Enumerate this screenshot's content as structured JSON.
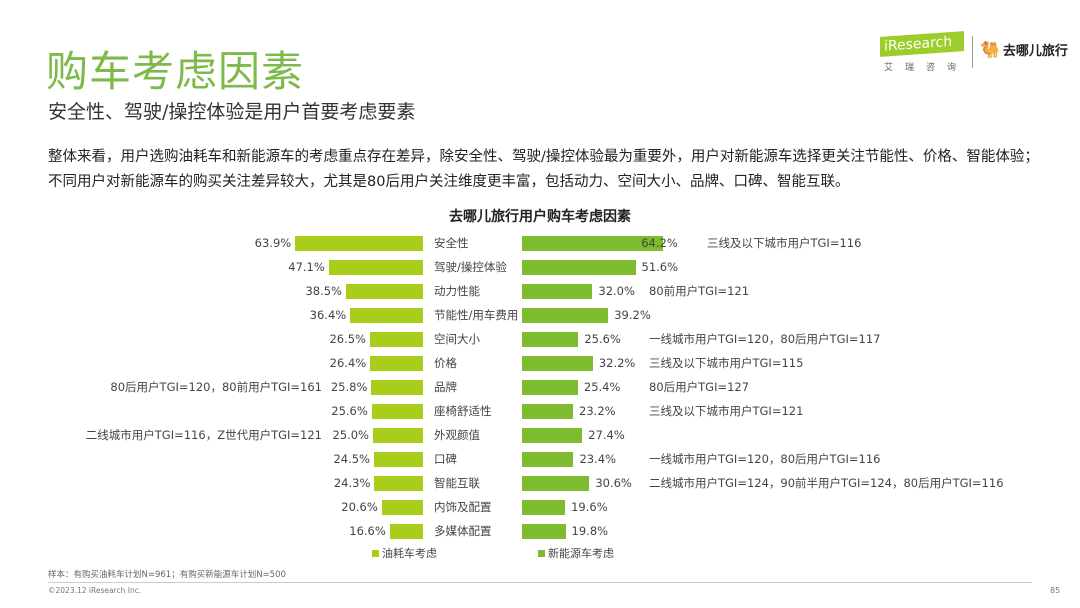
{
  "header": {
    "title": "购车考虑因素",
    "subtitle": "安全性、驾驶/操控体验是用户首要考虑要素",
    "description": "整体来看，用户选购油耗车和新能源车的考虑重点存在差异，除安全性、驾驶/操控体验最为重要外，用户对新能源车选择更关注节能性、价格、智能体验；不同用户对新能源车的购买关注差异较大，尤其是80后用户关注维度更丰富，包括动力、空间大小、品牌、口碑、智能互联。",
    "logo_iresearch": "iResearch",
    "logo_iresearch_sub": "艾瑞咨询",
    "logo_qunar": "去哪儿旅行"
  },
  "colors": {
    "fuel": "#a8cd1b",
    "nev": "#7dbb2f",
    "title": "#7dba4a"
  },
  "chart_data": {
    "type": "bar",
    "title": "去哪儿旅行用户购车考虑因素",
    "categories": [
      "安全性",
      "驾驶/操控体验",
      "动力性能",
      "节能性/用车费用",
      "空间大小",
      "价格",
      "品牌",
      "座椅舒适性",
      "外观颜值",
      "口碑",
      "智能互联",
      "内饰及配置",
      "多媒体配置"
    ],
    "series": [
      {
        "name": "油耗车考虑",
        "values": [
          63.9,
          47.1,
          38.5,
          36.4,
          26.5,
          26.4,
          25.8,
          25.6,
          25.0,
          24.5,
          24.3,
          20.6,
          16.6
        ],
        "labels": [
          "63.9%",
          "47.1%",
          "38.5%",
          "36.4%",
          "26.5%",
          "26.4%",
          "25.8%",
          "25.6%",
          "25.0%",
          "24.5%",
          "24.3%",
          "20.6%",
          "16.6%"
        ],
        "annotations": [
          "",
          "",
          "",
          "",
          "",
          "",
          "80后用户TGI=120，80前用户TGI=161",
          "",
          "二线城市用户TGI=116，Z世代用户TGI=121",
          "",
          "",
          "",
          ""
        ]
      },
      {
        "name": "新能源车考虑",
        "values": [
          64.2,
          51.6,
          32.0,
          39.2,
          25.6,
          32.2,
          25.4,
          23.2,
          27.4,
          23.4,
          30.6,
          19.6,
          19.8
        ],
        "labels": [
          "64.2%",
          "51.6%",
          "32.0%",
          "39.2%",
          "25.6%",
          "32.2%",
          "25.4%",
          "23.2%",
          "27.4%",
          "23.4%",
          "30.6%",
          "19.6%",
          "19.8%"
        ],
        "annotations": [
          "三线及以下城市用户TGI=116",
          "",
          "80前用户TGI=121",
          "",
          "一线城市用户TGI=120，80后用户TGI=117",
          "三线及以下城市用户TGI=115",
          "80后用户TGI=127",
          "三线及以下城市用户TGI=121",
          "",
          "一线城市用户TGI=120，80后用户TGI=116",
          "二线城市用户TGI=124，90前半用户TGI=124，80后用户TGI=116",
          "",
          ""
        ]
      }
    ],
    "unit": "%",
    "legend": "bottom"
  },
  "footer": {
    "note": "样本：有购买油耗车计划N=961；有购买新能源车计划N=500",
    "copyright": "©2023.12 iResearch Inc.",
    "page": "85"
  }
}
